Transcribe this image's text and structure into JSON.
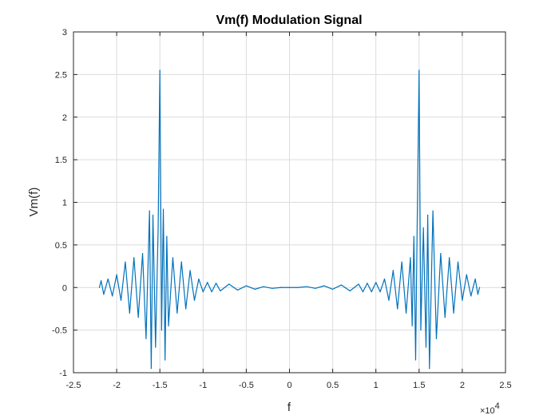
{
  "chart_data": {
    "type": "line",
    "title": "Vm(f) Modulation Signal",
    "xlabel": "f",
    "ylabel": "Vm(f)",
    "x_multiplier_label": "×10",
    "x_multiplier_exponent": "4",
    "xlim": [
      -2.5,
      2.5
    ],
    "ylim": [
      -1,
      3
    ],
    "x_ticks": [
      -2.5,
      -2,
      -1.5,
      -1,
      -0.5,
      0,
      0.5,
      1,
      1.5,
      2,
      2.5
    ],
    "x_tick_labels": [
      "-2.5",
      "-2",
      "-1.5",
      "-1",
      "-0.5",
      "0",
      "0.5",
      "1",
      "1.5",
      "2",
      "2.5"
    ],
    "y_ticks": [
      -1,
      -0.5,
      0,
      0.5,
      1,
      1.5,
      2,
      2.5,
      3
    ],
    "y_tick_labels": [
      "-1",
      "-0.5",
      "0",
      "0.5",
      "1",
      "1.5",
      "2",
      "2.5",
      "3"
    ],
    "grid": true,
    "line_color": "#0072bd",
    "series": [
      {
        "x": [
          -2.2,
          -2.18,
          -2.15,
          -2.1,
          -2.05,
          -2.0,
          -1.95,
          -1.9,
          -1.85,
          -1.8,
          -1.75,
          -1.7,
          -1.66,
          -1.62,
          -1.6,
          -1.58,
          -1.55,
          -1.52,
          -1.5,
          -1.48,
          -1.46,
          -1.44,
          -1.42,
          -1.4,
          -1.35,
          -1.3,
          -1.25,
          -1.2,
          -1.15,
          -1.1,
          -1.05,
          -1.0,
          -0.95,
          -0.9,
          -0.85,
          -0.8,
          -0.7,
          -0.6,
          -0.5,
          -0.4,
          -0.3,
          -0.2,
          -0.1,
          0.0,
          0.1,
          0.2,
          0.3,
          0.4,
          0.5,
          0.6,
          0.7,
          0.8,
          0.85,
          0.9,
          0.95,
          1.0,
          1.05,
          1.1,
          1.15,
          1.2,
          1.25,
          1.3,
          1.35,
          1.4,
          1.42,
          1.44,
          1.46,
          1.48,
          1.5,
          1.52,
          1.55,
          1.58,
          1.6,
          1.62,
          1.66,
          1.7,
          1.75,
          1.8,
          1.85,
          1.9,
          1.95,
          2.0,
          2.05,
          2.1,
          2.15,
          2.18,
          2.2
        ],
        "y": [
          0.0,
          0.08,
          -0.08,
          0.1,
          -0.1,
          0.15,
          -0.15,
          0.3,
          -0.3,
          0.35,
          -0.35,
          0.4,
          -0.6,
          0.9,
          -0.95,
          0.85,
          -0.7,
          0.7,
          2.55,
          -0.5,
          0.92,
          -0.85,
          0.6,
          -0.45,
          0.35,
          -0.3,
          0.3,
          -0.25,
          0.2,
          -0.15,
          0.1,
          -0.05,
          0.06,
          -0.05,
          0.05,
          -0.04,
          0.04,
          -0.03,
          0.02,
          -0.02,
          0.01,
          -0.01,
          0.0,
          0.0,
          0.0,
          0.01,
          -0.01,
          0.02,
          -0.02,
          0.03,
          -0.04,
          0.04,
          -0.05,
          0.05,
          -0.05,
          0.06,
          -0.05,
          0.1,
          -0.15,
          0.2,
          -0.25,
          0.3,
          -0.3,
          0.35,
          -0.45,
          0.6,
          -0.85,
          0.92,
          2.55,
          -0.5,
          0.7,
          -0.7,
          0.85,
          -0.95,
          0.9,
          -0.6,
          0.4,
          -0.35,
          0.35,
          -0.3,
          0.3,
          -0.15,
          0.15,
          -0.1,
          0.1,
          -0.08,
          0.0
        ]
      }
    ]
  }
}
